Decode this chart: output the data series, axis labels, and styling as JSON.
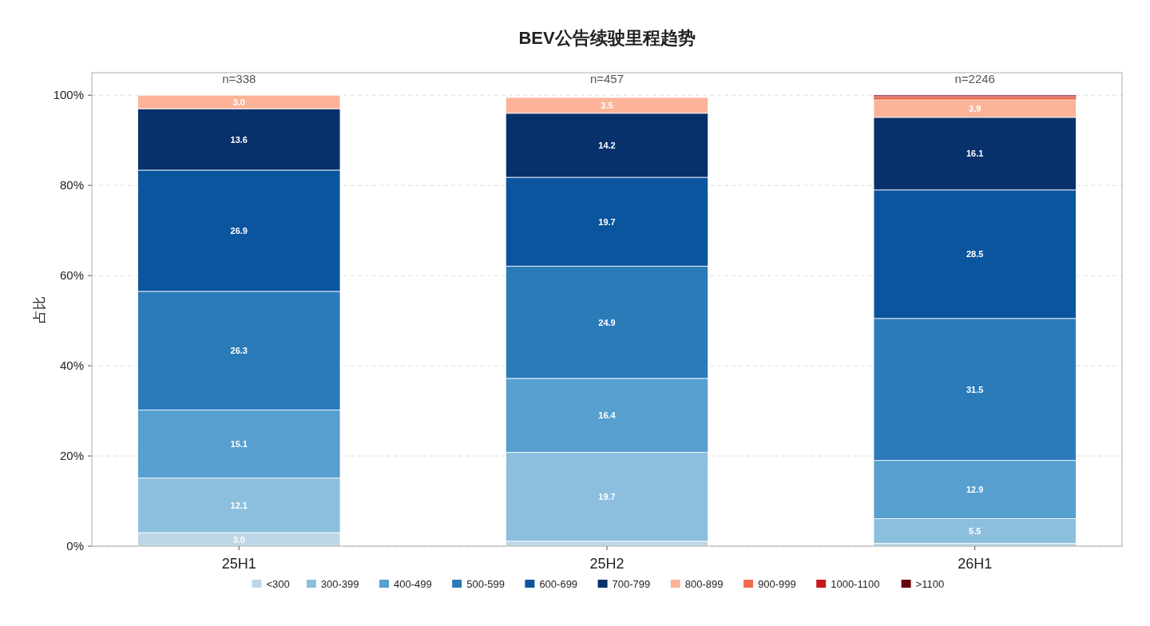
{
  "chart_data": {
    "type": "bar",
    "title": "BEV公告续驶里程趋势",
    "ylabel": "占比",
    "stacked": true,
    "categories": [
      "25H1",
      "25H2",
      "26H1"
    ],
    "series": [
      {
        "name": "<300",
        "color": "#bdd7e7",
        "values": [
          3.0,
          1.1,
          0.6
        ],
        "value_labels": [
          "3.0",
          null,
          null
        ]
      },
      {
        "name": "300-399",
        "color": "#8cbfdd",
        "values": [
          12.1,
          19.7,
          5.5
        ],
        "value_labels": [
          "12.1",
          "19.7",
          "5.5"
        ]
      },
      {
        "name": "400-499",
        "color": "#569fcf",
        "values": [
          15.1,
          16.4,
          12.9
        ],
        "value_labels": [
          "15.1",
          "16.4",
          "12.9"
        ]
      },
      {
        "name": "500-599",
        "color": "#2c7bb9",
        "values": [
          26.3,
          24.9,
          31.5
        ],
        "value_labels": [
          "26.3",
          "24.9",
          "31.5"
        ]
      },
      {
        "name": "600-699",
        "color": "#0b559f",
        "values": [
          26.9,
          19.7,
          28.5
        ],
        "value_labels": [
          "26.9",
          "19.7",
          "28.5"
        ]
      },
      {
        "name": "700-799",
        "color": "#08306b",
        "values": [
          13.6,
          14.2,
          16.1
        ],
        "value_labels": [
          "13.6",
          "14.2",
          "16.1"
        ]
      },
      {
        "name": "800-899",
        "color": "#fcb398",
        "values": [
          3.0,
          3.5,
          3.9
        ],
        "value_labels": [
          "3.0",
          "3.5",
          "3.9"
        ]
      },
      {
        "name": "900-999",
        "color": "#f06c4c",
        "values": [
          0,
          0,
          0.6
        ],
        "value_labels": [
          null,
          null,
          null
        ]
      },
      {
        "name": "1000-1100",
        "color": "#c9181d",
        "values": [
          0,
          0,
          0.2
        ],
        "value_labels": [
          null,
          null,
          null
        ]
      },
      {
        "name": ">1100",
        "color": "#67000d",
        "values": [
          0,
          0,
          0.2
        ],
        "value_labels": [
          null,
          null,
          null
        ]
      }
    ],
    "annotations": [
      "n=338",
      "n=457",
      "n=2246"
    ],
    "ylim": [
      0,
      105
    ],
    "yticks": [
      {
        "value": 0,
        "label": "0%"
      },
      {
        "value": 20,
        "label": "20%"
      },
      {
        "value": 40,
        "label": "40%"
      },
      {
        "value": 60,
        "label": "60%"
      },
      {
        "value": 80,
        "label": "80%"
      },
      {
        "value": 100,
        "label": "100%"
      }
    ],
    "grid": "y",
    "legend": "bottom"
  }
}
